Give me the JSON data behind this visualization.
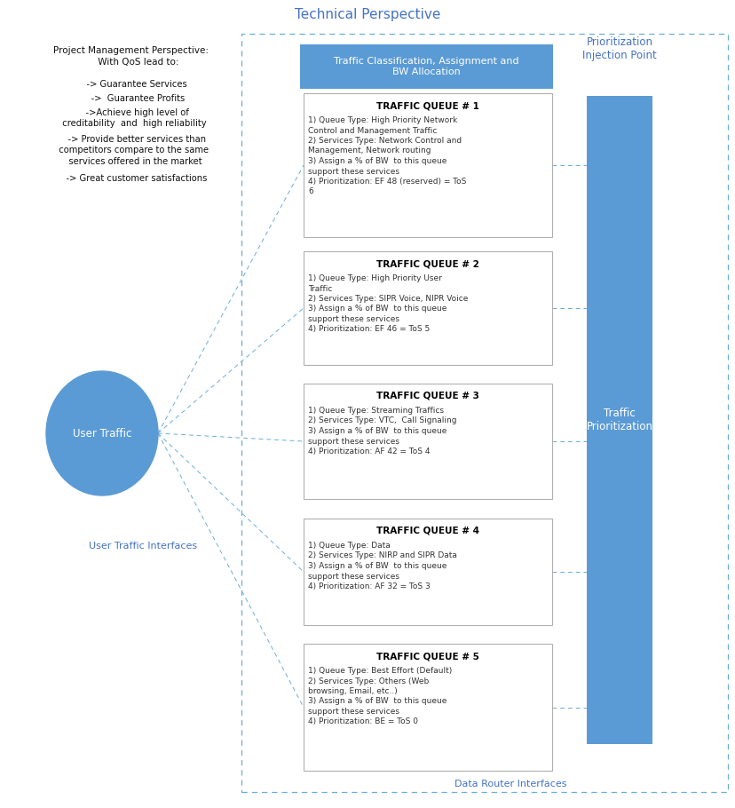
{
  "title": "Technical Perspective",
  "bg_color": "#ffffff",
  "title_color": "#4472C4",
  "dashed_border_color": "#6baed6",
  "left_text_title": "Project Management Perspective:\n     With QoS lead to:",
  "left_text_items": [
    "    -> Guarantee Services",
    "     ->  Guarantee Profits",
    "    ->Achieve high level of\n  creditability  and  high reliability",
    "    -> Provide better services than\n  competitors compare to the same\n   services offered in the market",
    "    -> Great customer satisfactions"
  ],
  "circle_color": "#5b9bd5",
  "circle_text": "User Traffic",
  "circle_text_color": "#ffffff",
  "user_traffic_label": "User Traffic Interfaces",
  "data_router_label": "Data Router Interfaces",
  "interface_label_color": "#4472C4",
  "header_box_color": "#5b9bd5",
  "header_box_text": "Traffic Classification, Assignment and\nBW Allocation",
  "header_box_text_color": "#ffffff",
  "right_bar_color": "#5b9bd5",
  "right_bar_text": "Traffic\nPrioritization",
  "right_bar_text_color": "#ffffff",
  "right_header_text": "Prioritization\nInjection Point",
  "right_header_color": "#4472C4",
  "queue_box_border": "#b0b0b0",
  "queue_box_fill": "#ffffff",
  "queue_title_color": "#000000",
  "queues": [
    {
      "title": "TRAFFIC QUEUE # 1",
      "lines": [
        "1) Queue Type: High Priority Network",
        "Control and Management Traffic",
        "2) Services Type: Network Control and",
        "Management, Network routing",
        "3) Assign a % of BW  to this queue",
        "support these services",
        "4) Prioritization: EF 48 (reserved) = ToS",
        "6"
      ]
    },
    {
      "title": "TRAFFIC QUEUE # 2",
      "lines": [
        "1) Queue Type: High Priority User",
        "Traffic",
        "2) Services Type: SIPR Voice, NIPR Voice",
        "3) Assign a % of BW  to this queue",
        "support these services",
        "4) Prioritization: EF 46 = ToS 5"
      ]
    },
    {
      "title": "TRAFFIC QUEUE # 3",
      "lines": [
        "1) Queue Type: Streaming Traffics",
        "2) Services Type: VTC,  Call Signaling",
        "3) Assign a % of BW  to this queue",
        "support these services",
        "4) Prioritization: AF 42 = ToS 4"
      ]
    },
    {
      "title": "TRAFFIC QUEUE # 4",
      "lines": [
        "1) Queue Type: Data",
        "2) Services Type: NIRP and SIPR Data",
        "3) Assign a % of BW  to this queue",
        "support these services",
        "4) Prioritization: AF 32 = ToS 3"
      ]
    },
    {
      "title": "TRAFFIC QUEUE # 5",
      "lines": [
        "1) Queue Type: Best Effort (Default)",
        "2) Services Type: Others (Web",
        "browsing, Email, etc..)",
        "3) Assign a % of BW  to this queue",
        "support these services",
        "4) Prioritization: BE = ToS 0"
      ]
    }
  ]
}
